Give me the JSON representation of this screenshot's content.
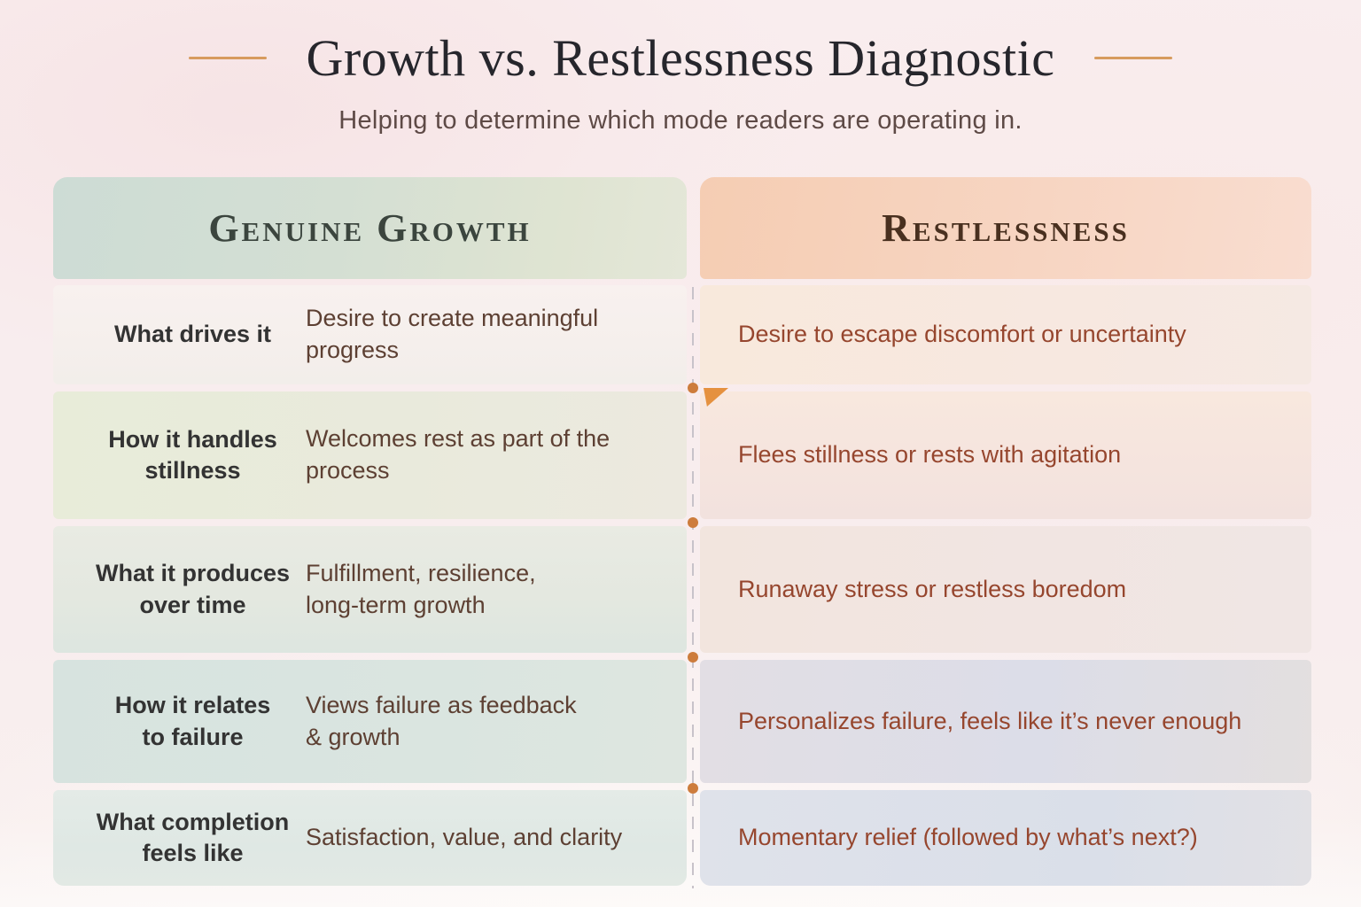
{
  "page": {
    "title": "Growth vs. Restlessness Diagnostic",
    "subtitle": "Helping to determine which mode readers are operating in."
  },
  "table": {
    "columns": [
      {
        "id": "genuine_growth",
        "header": "Genuine Growth"
      },
      {
        "id": "restlessness",
        "header": "Restlessness"
      }
    ],
    "rows": [
      {
        "label": "What drives it",
        "genuine_growth": "Desire to create meaningful\nprogress",
        "restlessness": "Desire to escape discomfort or uncertainty"
      },
      {
        "label": "How it handles\nstillness",
        "genuine_growth": "Welcomes rest as part of the\nprocess",
        "restlessness": "Flees stillness or rests with agitation"
      },
      {
        "label": "What it produces\nover time",
        "genuine_growth": "Fulfillment, resilience,\nlong-term growth",
        "restlessness": "Runaway stress or restless boredom"
      },
      {
        "label": "How it relates\nto failure",
        "genuine_growth": "Views failure as feedback\n& growth",
        "restlessness": "Personalizes failure, feels like it’s never enough"
      },
      {
        "label": "What completion\nfeels like",
        "genuine_growth": "Satisfaction, value, and clarity",
        "restlessness": "Momentary relief (followed by what’s next?)"
      }
    ]
  },
  "colors": {
    "page_background": "#f9edee",
    "title_text": "#26262c",
    "subtitle_text": "#5e4a46",
    "accent_dash": "#d79b5e",
    "divider_line": "#c8c3ca",
    "divider_dot": "#cd7c3c",
    "corner_fold": "#e5913f",
    "growth_header_bg": "#d2dfd3",
    "growth_header_text": "#3b453e",
    "growth_value_text": "#5d4033",
    "label_text": "#333333",
    "restless_header_bg": "#f6d2bb",
    "restless_header_text": "#49301f",
    "restless_value_text": "#96462e"
  }
}
